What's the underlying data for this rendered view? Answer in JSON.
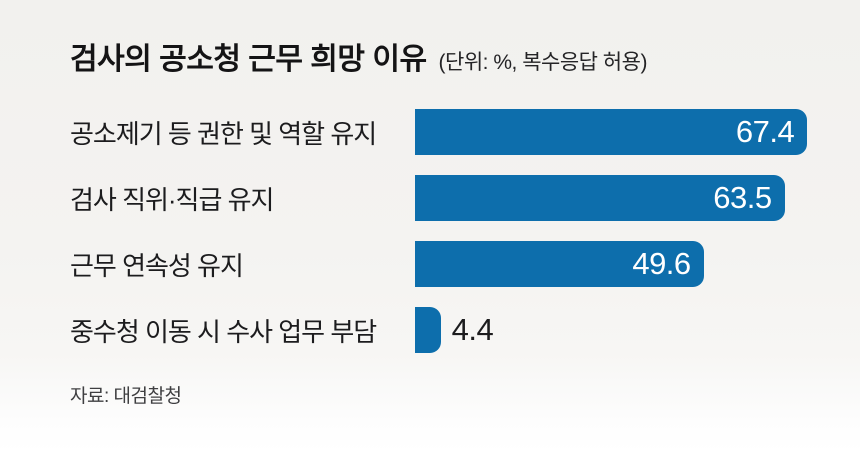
{
  "title": {
    "main": "검사의 공소청 근무 희망 이유",
    "unit_note": "(단위: %, 복수응답 허용)"
  },
  "source": "자료: 대검찰청",
  "chart_data": {
    "type": "bar",
    "orientation": "horizontal",
    "title": "검사의 공소청 근무 희망 이유",
    "unit": "%",
    "note": "복수응답 허용",
    "categories": [
      "공소제기 등 권한 및 역할 유지",
      "검사 직위·직급 유지",
      "근무 연속성 유지",
      "중수청 이동 시 수사 업무 부담"
    ],
    "values": [
      67.4,
      63.5,
      49.6,
      4.4
    ],
    "xlim": [
      0,
      70
    ],
    "grid": false,
    "legend": false,
    "bar_color": "#0d6eac",
    "value_color_inside": "#ffffff",
    "value_color_outside": "#1c1c1e"
  }
}
